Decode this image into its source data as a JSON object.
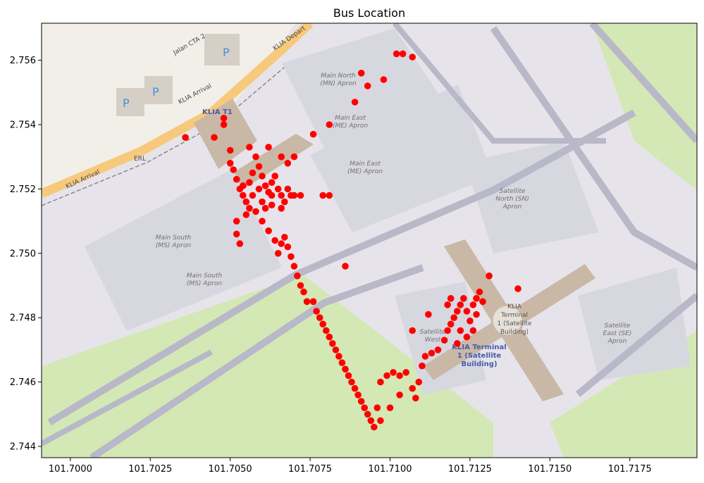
{
  "chart_data": {
    "type": "scatter",
    "title": "Bus Location",
    "xlabel": "",
    "ylabel": "",
    "xlim": [
      101.6991,
      101.7196
    ],
    "ylim": [
      2.74365,
      2.75715
    ],
    "xticks": [
      101.7,
      101.7025,
      101.705,
      101.7075,
      101.71,
      101.7125,
      101.715,
      101.7175
    ],
    "xtick_labels": [
      "101.7000",
      "101.7025",
      "101.7050",
      "101.7075",
      "101.7100",
      "101.7125",
      "101.7150",
      "101.7175"
    ],
    "yticks": [
      2.744,
      2.746,
      2.748,
      2.75,
      2.752,
      2.754,
      2.756
    ],
    "ytick_labels": [
      "2.744",
      "2.746",
      "2.748",
      "2.750",
      "2.752",
      "2.754",
      "2.756"
    ],
    "grid": false,
    "marker_color": "#ff0000",
    "points": [
      [
        101.7036,
        2.7536
      ],
      [
        101.7045,
        2.7536
      ],
      [
        101.7048,
        2.754
      ],
      [
        101.7048,
        2.7542
      ],
      [
        101.705,
        2.7532
      ],
      [
        101.705,
        2.7528
      ],
      [
        101.7051,
        2.7526
      ],
      [
        101.7052,
        2.7523
      ],
      [
        101.7053,
        2.752
      ],
      [
        101.7054,
        2.7518
      ],
      [
        101.7055,
        2.7516
      ],
      [
        101.7056,
        2.7522
      ],
      [
        101.7057,
        2.7525
      ],
      [
        101.7058,
        2.753
      ],
      [
        101.7059,
        2.7527
      ],
      [
        101.706,
        2.7524
      ],
      [
        101.7061,
        2.7521
      ],
      [
        101.7062,
        2.7519
      ],
      [
        101.7063,
        2.7522
      ],
      [
        101.7064,
        2.7524
      ],
      [
        101.7065,
        2.752
      ],
      [
        101.7066,
        2.7518
      ],
      [
        101.7067,
        2.7516
      ],
      [
        101.7068,
        2.752
      ],
      [
        101.7069,
        2.7518
      ],
      [
        101.707,
        2.7518
      ],
      [
        101.7072,
        2.7518
      ],
      [
        101.7055,
        2.7512
      ],
      [
        101.7058,
        2.7513
      ],
      [
        101.7061,
        2.7514
      ],
      [
        101.7063,
        2.7515
      ],
      [
        101.7066,
        2.7514
      ],
      [
        101.7052,
        2.751
      ],
      [
        101.7052,
        2.7506
      ],
      [
        101.7053,
        2.7503
      ],
      [
        101.706,
        2.751
      ],
      [
        101.7062,
        2.7507
      ],
      [
        101.7064,
        2.7504
      ],
      [
        101.7065,
        2.75
      ],
      [
        101.7066,
        2.7503
      ],
      [
        101.7067,
        2.7505
      ],
      [
        101.7068,
        2.7502
      ],
      [
        101.7069,
        2.7499
      ],
      [
        101.707,
        2.7496
      ],
      [
        101.7071,
        2.7493
      ],
      [
        101.7072,
        2.749
      ],
      [
        101.7073,
        2.7488
      ],
      [
        101.7074,
        2.7485
      ],
      [
        101.7076,
        2.7485
      ],
      [
        101.7077,
        2.7482
      ],
      [
        101.7078,
        2.748
      ],
      [
        101.7079,
        2.7478
      ],
      [
        101.708,
        2.7476
      ],
      [
        101.7081,
        2.7474
      ],
      [
        101.7082,
        2.7472
      ],
      [
        101.7083,
        2.747
      ],
      [
        101.7084,
        2.7468
      ],
      [
        101.7085,
        2.7466
      ],
      [
        101.7086,
        2.7464
      ],
      [
        101.7087,
        2.7462
      ],
      [
        101.7088,
        2.746
      ],
      [
        101.7089,
        2.7458
      ],
      [
        101.709,
        2.7456
      ],
      [
        101.7091,
        2.7454
      ],
      [
        101.7092,
        2.7452
      ],
      [
        101.7093,
        2.745
      ],
      [
        101.7094,
        2.7448
      ],
      [
        101.7095,
        2.7446
      ],
      [
        101.7096,
        2.7452
      ],
      [
        101.7097,
        2.746
      ],
      [
        101.7099,
        2.7462
      ],
      [
        101.7101,
        2.7463
      ],
      [
        101.7103,
        2.7462
      ],
      [
        101.7105,
        2.7463
      ],
      [
        101.7107,
        2.7458
      ],
      [
        101.7108,
        2.7455
      ],
      [
        101.7109,
        2.746
      ],
      [
        101.711,
        2.7465
      ],
      [
        101.7111,
        2.7468
      ],
      [
        101.7113,
        2.7469
      ],
      [
        101.7115,
        2.747
      ],
      [
        101.7117,
        2.7473
      ],
      [
        101.7118,
        2.7476
      ],
      [
        101.7119,
        2.7478
      ],
      [
        101.712,
        2.748
      ],
      [
        101.7121,
        2.7482
      ],
      [
        101.7122,
        2.7484
      ],
      [
        101.7123,
        2.7486
      ],
      [
        101.7124,
        2.7482
      ],
      [
        101.7125,
        2.7479
      ],
      [
        101.7126,
        2.7484
      ],
      [
        101.7127,
        2.7486
      ],
      [
        101.7128,
        2.7488
      ],
      [
        101.7126,
        2.7476
      ],
      [
        101.7118,
        2.7484
      ],
      [
        101.7131,
        2.7493
      ],
      [
        101.714,
        2.7489
      ],
      [
        101.7112,
        2.7481
      ],
      [
        101.7107,
        2.7476
      ],
      [
        101.7103,
        2.7456
      ],
      [
        101.71,
        2.7452
      ],
      [
        101.7097,
        2.7448
      ],
      [
        101.7086,
        2.7496
      ],
      [
        101.7079,
        2.7518
      ],
      [
        101.7081,
        2.7518
      ],
      [
        101.7076,
        2.7537
      ],
      [
        101.7081,
        2.754
      ],
      [
        101.7089,
        2.7547
      ],
      [
        101.7091,
        2.7556
      ],
      [
        101.7093,
        2.7552
      ],
      [
        101.7098,
        2.7554
      ],
      [
        101.7102,
        2.7562
      ],
      [
        101.7104,
        2.7562
      ],
      [
        101.7107,
        2.7561
      ],
      [
        101.7068,
        2.7528
      ],
      [
        101.707,
        2.753
      ],
      [
        101.7056,
        2.7533
      ],
      [
        101.7062,
        2.7533
      ],
      [
        101.7066,
        2.753
      ],
      [
        101.706,
        2.7516
      ],
      [
        101.7057,
        2.7518
      ],
      [
        101.7059,
        2.752
      ],
      [
        101.7063,
        2.7518
      ],
      [
        101.7054,
        2.7521
      ],
      [
        101.7056,
        2.7514
      ],
      [
        101.7124,
        2.7474
      ],
      [
        101.7122,
        2.7476
      ],
      [
        101.7127,
        2.7481
      ],
      [
        101.7129,
        2.7485
      ],
      [
        101.7121,
        2.7472
      ],
      [
        101.7119,
        2.7486
      ]
    ]
  },
  "map": {
    "labels": {
      "klia_t1": "KLIA T1",
      "main_north": "Main North",
      "main_north_2": "(MN) Apron",
      "main_east_a": "Main East",
      "main_east_a2": "(ME) Apron",
      "main_east_b": "Main East",
      "main_east_b2": "(ME) Apron",
      "main_south_a": "Main South",
      "main_south_a2": "(MS) Apron",
      "main_south_b": "Main South",
      "main_south_b2": "(MS) Apron",
      "satellite_north": "Satellite",
      "satellite_north_2": "North (SN)",
      "satellite_north_3": "Apron",
      "satellite_east": "Satellite",
      "satellite_east_2": "East (SE)",
      "satellite_east_3": "Apron",
      "satellite_west": "Satellite",
      "satellite_west_2": "West",
      "klia_terminal_a": "KLIA",
      "klia_terminal_a2": "Terminal",
      "klia_terminal_a3": "1 (Satellite",
      "klia_terminal_a4": "Building)",
      "klia_terminal_b": "KLIA Terminal",
      "klia_terminal_b2": "1 (Satellite",
      "klia_terminal_b3": "Building)",
      "klia_arrival_a": "KLIA Arrival",
      "klia_arrival_b": "KLIA Arrival",
      "klia_departure": "KLIA Depart",
      "jalan_cta": "Jalan CTA 2",
      "erl": "ERL",
      "parking": "P"
    },
    "colors": {
      "background": "#f2efe9",
      "apron": "#dadae0",
      "taxiway": "#b8b8c8",
      "grass": "#cdebb0",
      "field": "#d3e8b5",
      "building": "#c9b8a6",
      "road_major": "#f7c97c"
    }
  }
}
